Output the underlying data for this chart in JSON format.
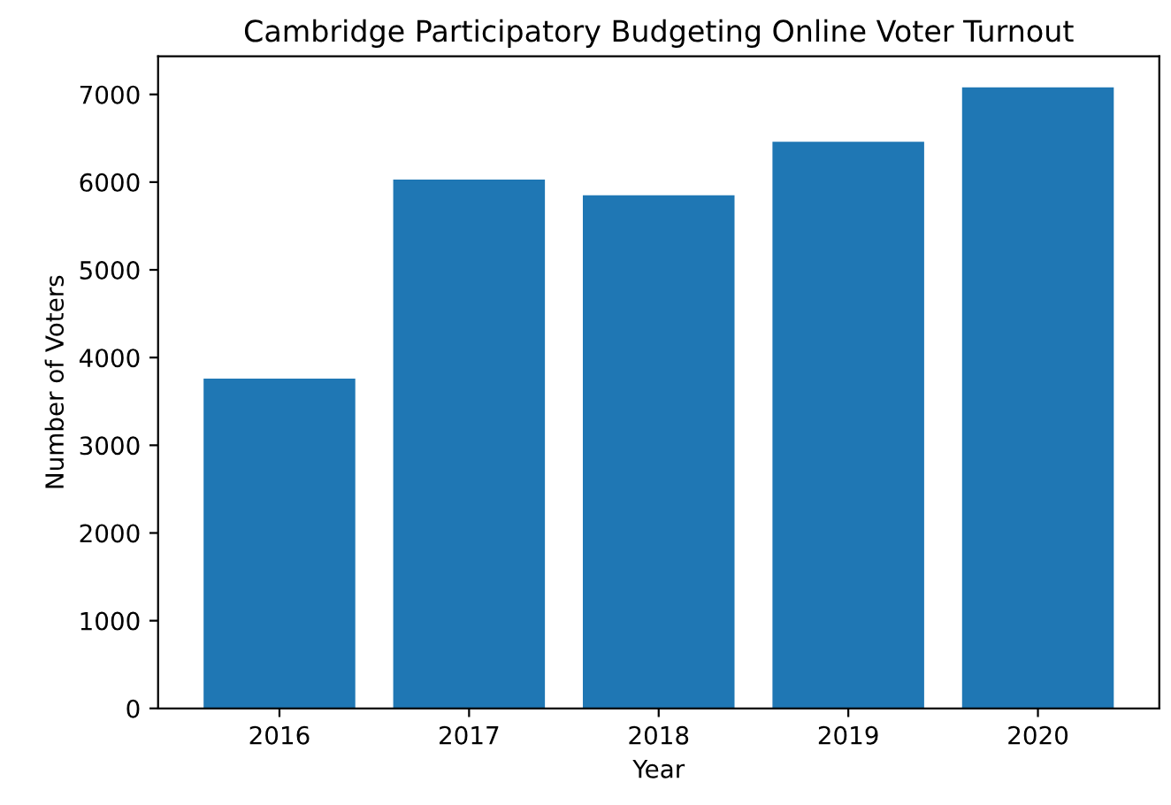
{
  "chart_data": {
    "type": "bar",
    "title": "Cambridge Participatory Budgeting Online Voter Turnout",
    "xlabel": "Year",
    "ylabel": "Number of Voters",
    "categories": [
      "2016",
      "2017",
      "2018",
      "2019",
      "2020"
    ],
    "values": [
      3760,
      6030,
      5850,
      6460,
      7080
    ],
    "color": "#1f77b4",
    "ylim": [
      0,
      7434
    ],
    "yticks": [
      0,
      1000,
      2000,
      3000,
      4000,
      5000,
      6000,
      7000
    ],
    "grid": false,
    "legend": false
  }
}
